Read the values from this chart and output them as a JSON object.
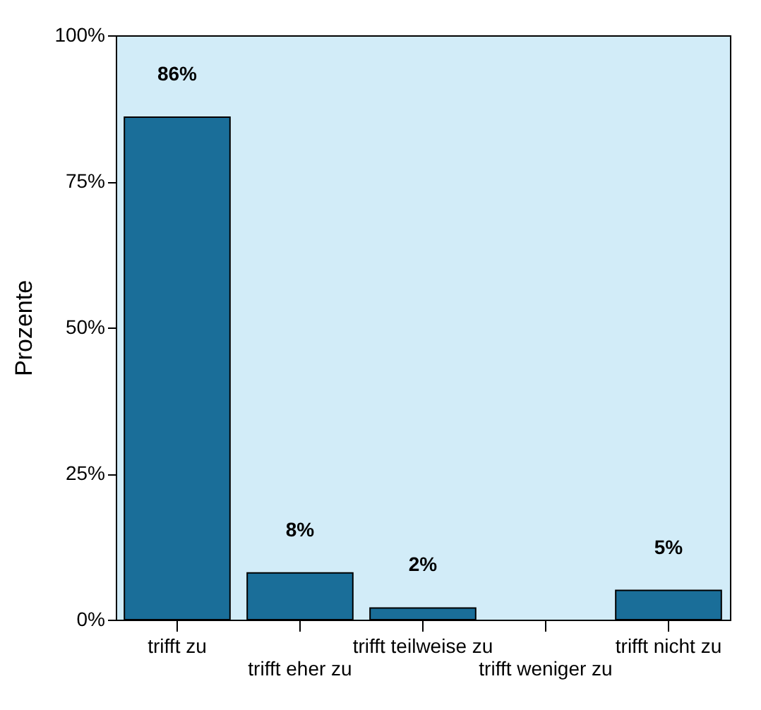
{
  "chart_data": {
    "type": "bar",
    "ylabel": "Prozente",
    "categories": [
      "trifft zu",
      "trifft eher zu",
      "trifft teilweise zu",
      "trifft weniger zu",
      "trifft nicht zu"
    ],
    "values": [
      86,
      8,
      2,
      null,
      5
    ],
    "value_labels": [
      "86%",
      "8%",
      "2%",
      null,
      "5%"
    ],
    "color": "#1a6e99",
    "ylim": [
      0,
      100
    ],
    "yticks": [
      {
        "value": 0,
        "label": "0%"
      },
      {
        "value": 25,
        "label": "25%"
      },
      {
        "value": 50,
        "label": "50%"
      },
      {
        "value": 75,
        "label": "75%"
      },
      {
        "value": 100,
        "label": "100%"
      }
    ],
    "grid": false
  }
}
